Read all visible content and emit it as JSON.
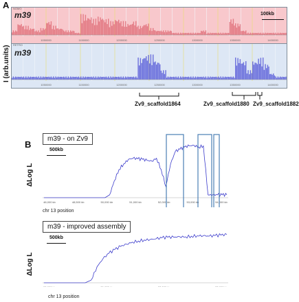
{
  "panelA": {
    "letter": "A",
    "ylabel": "I (arb.units)",
    "scale_label": "100kb",
    "colors": {
      "top_fill": "#f8c8cc",
      "top_bar": "#e0707a",
      "bottom_fill": "#d8e4f4",
      "bottom_bar": "#5a5ed8",
      "gridline": "#e8e070",
      "bg": "#dde7f5"
    },
    "tracks": [
      {
        "label": "m39",
        "tag": "NOMO",
        "ticks": [
          "1050000",
          "1150000",
          "1200000",
          "1250000",
          "1300000",
          "1350000",
          "1400000"
        ]
      },
      {
        "label": "m39",
        "tag": "RETRO",
        "ticks": [
          "1050000",
          "1150000",
          "1200000",
          "1250000",
          "1300000",
          "1350000",
          "1400000"
        ]
      }
    ],
    "scaffolds": [
      "Zv9_scaffold1864",
      "Zv9_scaffold1880",
      "Zv9_scaffold1882"
    ]
  },
  "panelB": {
    "letter": "B",
    "plots": [
      {
        "title": "m39 - on Zv9",
        "scale": "500kb",
        "ylabel": "ΔLog L",
        "xlabel": "chr 13 position",
        "ticks": [
          "48,000 kb",
          "48,500 kb",
          "50,000 kb",
          "51,000 kb",
          "52,000 kb",
          "53,000 kb",
          "54,000 kb"
        ]
      },
      {
        "title": "m39 - improved assembly",
        "scale": "500kb",
        "ylabel": "ΔLog L",
        "xlabel": "chr 13 position",
        "ticks": [
          "50,000 kb",
          "51,000 kb",
          "52,000 kb",
          "53,000 kb"
        ]
      }
    ],
    "colors": {
      "line": "#3a3acb",
      "box": "#4a7fb5",
      "baseline": "#888888"
    }
  },
  "chart_data": [
    {
      "type": "bar",
      "title": "",
      "xlabel": "",
      "ylabel": "I (arb.units)",
      "series": [
        {
          "name": "m39",
          "values": [
            0.2,
            0.5,
            0.4,
            0.3,
            0.2,
            0.3,
            0.6,
            0.4,
            0.3,
            0.2,
            0.2,
            0.1,
            0.9,
            0.8,
            0.7,
            0.8,
            0.7,
            0.6,
            0.7,
            0.6,
            0.5,
            0.6,
            0.4,
            0.5,
            0.3,
            0.2,
            0.2,
            0.2,
            0.1,
            0.1,
            0.1,
            0.1,
            0.1,
            0.2,
            0.1,
            0.1,
            0.1,
            0.1,
            0.7,
            0.5,
            0.2,
            0.1,
            0.1,
            0.1,
            0.1,
            0.1,
            0.1,
            0.1
          ]
        }
      ]
    },
    {
      "type": "bar",
      "title": "",
      "xlabel": "",
      "ylabel": "I (arb.units)",
      "series": [
        {
          "name": "m39",
          "values": [
            0.1,
            0.1,
            0.1,
            0.1,
            0.1,
            0.1,
            0.1,
            0.1,
            0.1,
            0.1,
            0.1,
            0.1,
            0.1,
            0.1,
            0.1,
            0.1,
            0.1,
            0.1,
            0.1,
            0.1,
            0.1,
            0.1,
            0.7,
            0.8,
            0.8,
            0.6,
            0.3,
            0.1,
            0.1,
            0.1,
            0.1,
            0.1,
            0.1,
            0.1,
            0.1,
            0.1,
            0.1,
            0.1,
            0.1,
            0.7,
            0.6,
            0.3,
            0.6,
            0.7,
            0.5,
            0.2,
            0.1,
            0.1
          ]
        }
      ]
    },
    {
      "type": "line",
      "title": "m39 - on Zv9",
      "xlabel": "chr 13 position",
      "ylabel": "ΔLog L",
      "series": [
        {
          "name": "m39 - on Zv9",
          "values": [
            0,
            0,
            0,
            0,
            0,
            0,
            0,
            0,
            0,
            0,
            0,
            0,
            0,
            0,
            0.05,
            0.3,
            0.5,
            0.6,
            0.68,
            0.7,
            0.69,
            0.68,
            0.66,
            0.65,
            0.7,
            0.5,
            0.2,
            0.6,
            0.82,
            0.86,
            0.9,
            0.92,
            0.93,
            0.9,
            0.92,
            0.05,
            0.05,
            0.05,
            0.05,
            0.05
          ]
        }
      ]
    },
    {
      "type": "line",
      "title": "m39 - improved assembly",
      "xlabel": "chr 13 position",
      "ylabel": "ΔLog L",
      "series": [
        {
          "name": "m39 - improved assembly",
          "values": [
            0,
            0,
            0,
            0,
            0,
            0,
            0,
            0,
            0.05,
            0.3,
            0.45,
            0.55,
            0.62,
            0.68,
            0.72,
            0.76,
            0.78,
            0.8,
            0.81,
            0.82,
            0.84,
            0.85,
            0.85,
            0.86,
            0.86,
            0.87,
            0.88,
            0.88,
            0.87,
            0.88,
            0.89,
            0.9
          ]
        }
      ]
    }
  ]
}
